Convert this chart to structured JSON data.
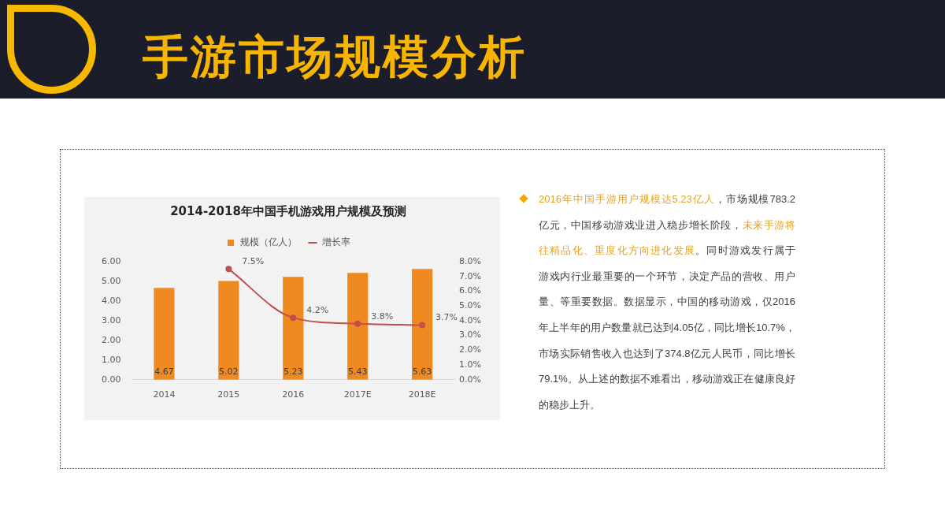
{
  "chart_data": {
    "type": "bar",
    "title": "2014-2018年中国手机游戏用户规模及预测",
    "categories": [
      "2014",
      "2015",
      "2016",
      "2017E",
      "2018E"
    ],
    "series": [
      {
        "name": "规模（亿人）",
        "color": "#ef8a22",
        "values": [
          4.67,
          5.02,
          5.23,
          5.43,
          5.63
        ],
        "value_labels": [
          "4.67",
          "5.02",
          "5.23",
          "5.43",
          "5.63"
        ]
      },
      {
        "name": "增长率",
        "type": "line",
        "axis": "y2",
        "color": "#c0504d",
        "values": [
          null,
          7.5,
          4.2,
          3.8,
          3.7
        ],
        "value_labels": [
          null,
          "7.5%",
          "4.2%",
          "3.8%",
          "3.7%"
        ]
      }
    ],
    "ylim": [
      0,
      6
    ],
    "yticks": [
      {
        "value": 0,
        "label": "0.00"
      },
      {
        "value": 1,
        "label": "1.00"
      },
      {
        "value": 2,
        "label": "2.00"
      },
      {
        "value": 3,
        "label": "3.00"
      },
      {
        "value": 4,
        "label": "4.00"
      },
      {
        "value": 5,
        "label": "5.00"
      },
      {
        "value": 6,
        "label": "6.00"
      }
    ],
    "y2lim": [
      0,
      8
    ],
    "y2ticks": [
      {
        "value": 0,
        "label": "0.0%"
      },
      {
        "value": 1,
        "label": "1.0%"
      },
      {
        "value": 2,
        "label": "2.0%"
      },
      {
        "value": 3,
        "label": "3.0%"
      },
      {
        "value": 4,
        "label": "4.0%"
      },
      {
        "value": 5,
        "label": "5.0%"
      },
      {
        "value": 6,
        "label": "6.0%"
      },
      {
        "value": 7,
        "label": "7.0%"
      },
      {
        "value": 8,
        "label": "8.0%"
      }
    ],
    "legend": "top",
    "marker": "circle",
    "line_style": "solid",
    "annotations": [
      "手游市场规模分析",
      "2016年中国手游用户规模达5.23亿人",
      "，市场规模783.2",
      "亿元，中国移动游戏业进入稳步增长阶段，",
      "未来手游将",
      "往精品化、重度化方向进化发展",
      "。同时游戏发行属于",
      "游戏内行业最重要的一个环节，决定产品的营收、用户量、等重要数据。数据显示，中国的移动游戏，仅2016年上半年的用户数量就已达到4.05亿，同比增长10.7%，市场实际销售收入也达到了374.8亿元人民币，同比增长79.1%。从上述的数据不难看出，移动游戏正在健康良好的稳步上升。"
    ]
  }
}
